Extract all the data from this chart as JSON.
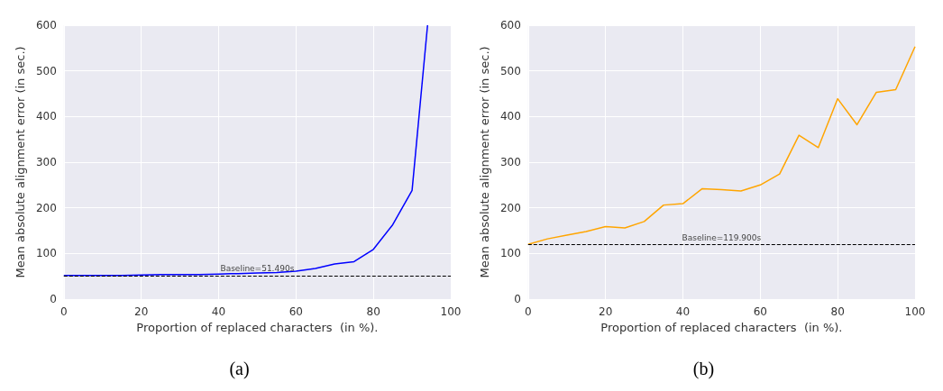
{
  "chart_data": [
    {
      "type": "line",
      "title": "(a)",
      "xlabel": "Proportion of replaced characters  (in %).",
      "ylabel": "Mean absolute alignment error (in sec.)",
      "x": [
        0,
        5,
        10,
        15,
        20,
        25,
        30,
        35,
        40,
        45,
        50,
        55,
        60,
        65,
        70,
        75,
        80,
        85,
        90,
        94
      ],
      "series": [
        {
          "color": "#0000ff",
          "values": [
            52,
            52,
            52,
            52,
            53,
            54,
            54,
            54,
            55,
            56,
            57,
            58,
            61,
            67,
            77,
            82,
            109,
            163,
            238,
            600
          ]
        }
      ],
      "xlim": [
        0,
        100
      ],
      "xticks": [
        0,
        20,
        40,
        60,
        80,
        100
      ],
      "ylim": [
        0,
        600
      ],
      "yticks": [
        0,
        100,
        200,
        300,
        400,
        500,
        600
      ],
      "grid": true,
      "ref_lines": [
        {
          "axis": "y",
          "value": 51.49,
          "label": "Baseline=51.490s",
          "color": "#000000",
          "line_style": "dashed"
        }
      ]
    },
    {
      "type": "line",
      "title": "(b)",
      "xlabel": "Proportion of replaced characters  (in %).",
      "ylabel": "Mean absolute alignment error (in sec.)",
      "x": [
        0,
        5,
        10,
        15,
        20,
        25,
        30,
        35,
        40,
        45,
        50,
        55,
        60,
        65,
        70,
        75,
        80,
        85,
        90,
        95,
        100
      ],
      "series": [
        {
          "color": "#ffa500",
          "values": [
            120,
            132,
            140,
            148,
            159,
            156,
            170,
            206,
            209,
            242,
            240,
            237,
            250,
            274,
            359,
            332,
            439,
            382,
            453,
            459,
            553
          ]
        }
      ],
      "xlim": [
        0,
        100
      ],
      "xticks": [
        0,
        20,
        40,
        60,
        80,
        100
      ],
      "ylim": [
        0,
        600
      ],
      "yticks": [
        0,
        100,
        200,
        300,
        400,
        500,
        600
      ],
      "grid": true,
      "ref_lines": [
        {
          "axis": "y",
          "value": 119.9,
          "label": "Baseline=119.900s",
          "color": "#000000",
          "line_style": "dashed"
        }
      ]
    }
  ]
}
